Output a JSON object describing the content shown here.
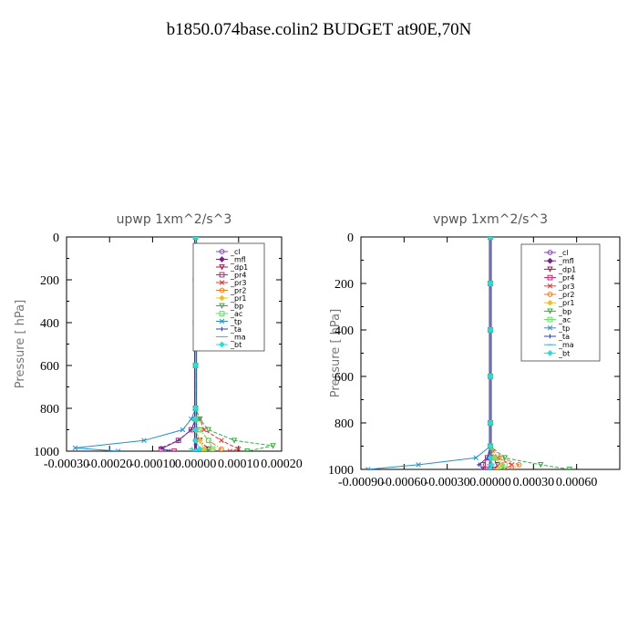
{
  "title": "b1850.074base.colin2  BUDGET at90E,70N",
  "series_colors": {
    "_cl": "#8a3fbf",
    "_mfl": "#7b1d8f",
    "_dp1": "#a01a5a",
    "_pr4": "#d0206a",
    "_pr3": "#ee3030",
    "_pr2": "#f07a20",
    "_pr1": "#f0c020",
    "_bp": "#30b040",
    "_ac": "#60e060",
    "_tp": "#2090d0",
    "_ta": "#2040c0",
    "_ma": "#40c0c0",
    "_bt": "#20e0e0"
  },
  "chart_data": [
    {
      "type": "line",
      "title": "upwp   1xm^2/s^3",
      "ylabel": "Pressure  [ hPa]",
      "xlabel": "",
      "xlim": [
        -0.0003,
        0.0002
      ],
      "ylim": [
        1000,
        0
      ],
      "x_ticks": [
        "-0.00030",
        "-0.00020",
        "-0.00010",
        "0.00000",
        "0.00010",
        "0.00020"
      ],
      "y_ticks": [
        "0",
        "200",
        "400",
        "600",
        "800",
        "1000"
      ],
      "legend": [
        "_cl",
        "_mfl",
        "_dp1",
        "_pr4",
        "_pr3",
        "_pr2",
        "_pr1",
        "_bp",
        "_ac",
        "_tp",
        "_ta",
        "_ma",
        "_bt"
      ],
      "legend_position": "top-right",
      "series": [
        {
          "name": "_cl",
          "y": [
            0,
            200,
            400,
            600,
            800,
            850,
            900,
            950,
            1000
          ],
          "x": [
            0,
            0,
            0,
            0,
            0,
            0,
            0,
            0,
            0
          ]
        },
        {
          "name": "_mfl",
          "y": [
            0,
            200,
            400,
            600,
            800,
            850,
            900,
            950,
            1000
          ],
          "x": [
            0,
            0,
            0,
            0,
            0,
            0,
            0,
            0,
            0
          ]
        },
        {
          "name": "_dp1",
          "y": [
            0,
            200,
            400,
            600,
            800,
            850,
            900,
            950,
            990,
            1000
          ],
          "x": [
            0,
            0,
            0,
            0,
            0,
            0,
            0,
            1e-05,
            3e-05,
            2e-05
          ]
        },
        {
          "name": "_pr4",
          "y": [
            0,
            200,
            400,
            600,
            800,
            850,
            900,
            950,
            990,
            1000
          ],
          "x": [
            0,
            0,
            0,
            0,
            0,
            0,
            -1e-05,
            -4e-05,
            -8e-05,
            -5e-05
          ]
        },
        {
          "name": "_pr3",
          "y": [
            0,
            200,
            400,
            600,
            800,
            850,
            900,
            950,
            990,
            1000
          ],
          "x": [
            0,
            0,
            0,
            0,
            0,
            1e-05,
            2e-05,
            6e-05,
            0.0001,
            8e-05
          ]
        },
        {
          "name": "_pr2",
          "y": [
            0,
            200,
            400,
            600,
            800,
            850,
            900,
            950,
            990,
            1000
          ],
          "x": [
            0,
            0,
            0,
            0,
            0,
            0,
            1e-05,
            3e-05,
            6e-05,
            4e-05
          ]
        },
        {
          "name": "_pr1",
          "y": [
            0,
            200,
            400,
            600,
            800,
            850,
            900,
            950,
            990,
            1000
          ],
          "x": [
            0,
            0,
            0,
            0,
            0,
            0,
            0,
            1e-05,
            2e-05,
            2e-05
          ]
        },
        {
          "name": "_bp",
          "y": [
            0,
            200,
            400,
            600,
            800,
            850,
            900,
            950,
            975,
            1000
          ],
          "x": [
            0,
            0,
            0,
            0,
            0,
            1e-05,
            3e-05,
            9e-05,
            0.00018,
            0.00012
          ]
        },
        {
          "name": "_ac",
          "y": [
            0,
            200,
            400,
            600,
            800,
            850,
            900,
            950,
            990,
            1000
          ],
          "x": [
            0,
            0,
            0,
            0,
            0,
            0,
            1e-05,
            3e-05,
            4e-05,
            3e-05
          ]
        },
        {
          "name": "_tp",
          "y": [
            0,
            200,
            400,
            600,
            800,
            850,
            900,
            950,
            985,
            1000
          ],
          "x": [
            0,
            0,
            0,
            0,
            0,
            -1e-05,
            -3e-05,
            -0.00012,
            -0.00028,
            -0.00018
          ]
        },
        {
          "name": "_ta",
          "y": [
            0,
            200,
            400,
            600,
            800,
            850,
            900,
            950,
            985,
            1000
          ],
          "x": [
            0,
            0,
            0,
            0,
            0,
            0,
            -1e-05,
            -4e-05,
            -8e-05,
            -6e-05
          ]
        },
        {
          "name": "_ma",
          "y": [
            0,
            200,
            400,
            600,
            800,
            850,
            900,
            950,
            990,
            1000
          ],
          "x": [
            0,
            0,
            0,
            0,
            0,
            0,
            0,
            0,
            -1e-05,
            0
          ]
        },
        {
          "name": "_bt",
          "y": [
            0,
            200,
            400,
            600,
            800,
            850,
            900,
            950,
            990,
            1000
          ],
          "x": [
            0,
            0,
            0,
            0,
            0,
            0,
            0,
            0,
            1e-05,
            0
          ]
        }
      ]
    },
    {
      "type": "line",
      "title": "vpwp   1xm^2/s^3",
      "ylabel": "Pressure  [ hPa]",
      "xlabel": "",
      "xlim": [
        -0.0009,
        0.0009
      ],
      "ylim": [
        1000,
        0
      ],
      "x_ticks": [
        "-0.00090",
        "-0.00060",
        "-0.00030",
        "0.00000",
        "0.00030",
        "0.00060"
      ],
      "y_ticks": [
        "0",
        "200",
        "400",
        "600",
        "800",
        "1000"
      ],
      "legend": [
        "_cl",
        "_mfl",
        "_dp1",
        "_pr4",
        "_pr3",
        "_pr2",
        "_pr1",
        "_bp",
        "_ac",
        "_tp",
        "_ta",
        "_ma",
        "_bt"
      ],
      "legend_position": "top-right",
      "series": [
        {
          "name": "_cl",
          "y": [
            0,
            200,
            400,
            600,
            800,
            900,
            950,
            1000
          ],
          "x": [
            0,
            0,
            0,
            0,
            0,
            0,
            0,
            0
          ]
        },
        {
          "name": "_mfl",
          "y": [
            0,
            200,
            400,
            600,
            800,
            900,
            950,
            1000
          ],
          "x": [
            0,
            0,
            0,
            0,
            0,
            0,
            0,
            0
          ]
        },
        {
          "name": "_dp1",
          "y": [
            0,
            200,
            400,
            600,
            800,
            900,
            950,
            980,
            1000
          ],
          "x": [
            0,
            0,
            0,
            0,
            0,
            0,
            2e-05,
            5e-05,
            3e-05
          ]
        },
        {
          "name": "_pr4",
          "y": [
            0,
            200,
            400,
            600,
            800,
            900,
            950,
            980,
            1000
          ],
          "x": [
            0,
            0,
            0,
            0,
            0,
            0,
            -2e-05,
            -5e-05,
            -3e-05
          ]
        },
        {
          "name": "_pr3",
          "y": [
            0,
            200,
            400,
            600,
            800,
            900,
            950,
            980,
            1000
          ],
          "x": [
            0,
            0,
            0,
            0,
            0,
            0,
            5e-05,
            0.00015,
            0.0001
          ]
        },
        {
          "name": "_pr2",
          "y": [
            0,
            200,
            400,
            600,
            800,
            900,
            950,
            980,
            1000
          ],
          "x": [
            0,
            0,
            0,
            0,
            0,
            0,
            8e-05,
            0.0002,
            0.00015
          ]
        },
        {
          "name": "_pr1",
          "y": [
            0,
            200,
            400,
            600,
            800,
            900,
            950,
            980,
            1000
          ],
          "x": [
            0,
            0,
            0,
            0,
            0,
            0,
            3e-05,
            8e-05,
            5e-05
          ]
        },
        {
          "name": "_bp",
          "y": [
            0,
            200,
            400,
            600,
            800,
            900,
            950,
            980,
            1000
          ],
          "x": [
            0,
            0,
            0,
            0,
            0,
            0,
            0.0001,
            0.00035,
            0.00055
          ]
        },
        {
          "name": "_ac",
          "y": [
            0,
            200,
            400,
            600,
            800,
            900,
            950,
            980,
            1000
          ],
          "x": [
            0,
            0,
            0,
            0,
            0,
            0,
            3e-05,
            0.0001,
            8e-05
          ]
        },
        {
          "name": "_tp",
          "y": [
            0,
            200,
            400,
            600,
            800,
            900,
            950,
            980,
            1000
          ],
          "x": [
            0,
            0,
            0,
            0,
            0,
            0,
            -0.0001,
            -0.0005,
            -0.00085
          ]
        },
        {
          "name": "_ta",
          "y": [
            0,
            200,
            400,
            600,
            800,
            900,
            950,
            980,
            1000
          ],
          "x": [
            0,
            0,
            0,
            0,
            0,
            0,
            -2e-05,
            -8e-05,
            -5e-05
          ]
        },
        {
          "name": "_ma",
          "y": [
            0,
            200,
            400,
            600,
            800,
            900,
            950,
            980,
            1000
          ],
          "x": [
            0,
            0,
            0,
            0,
            0,
            0,
            0,
            -1e-05,
            0
          ]
        },
        {
          "name": "_bt",
          "y": [
            0,
            200,
            400,
            600,
            800,
            900,
            950,
            980,
            1000
          ],
          "x": [
            0,
            0,
            0,
            0,
            0,
            0,
            0,
            1e-05,
            0
          ]
        }
      ]
    }
  ]
}
